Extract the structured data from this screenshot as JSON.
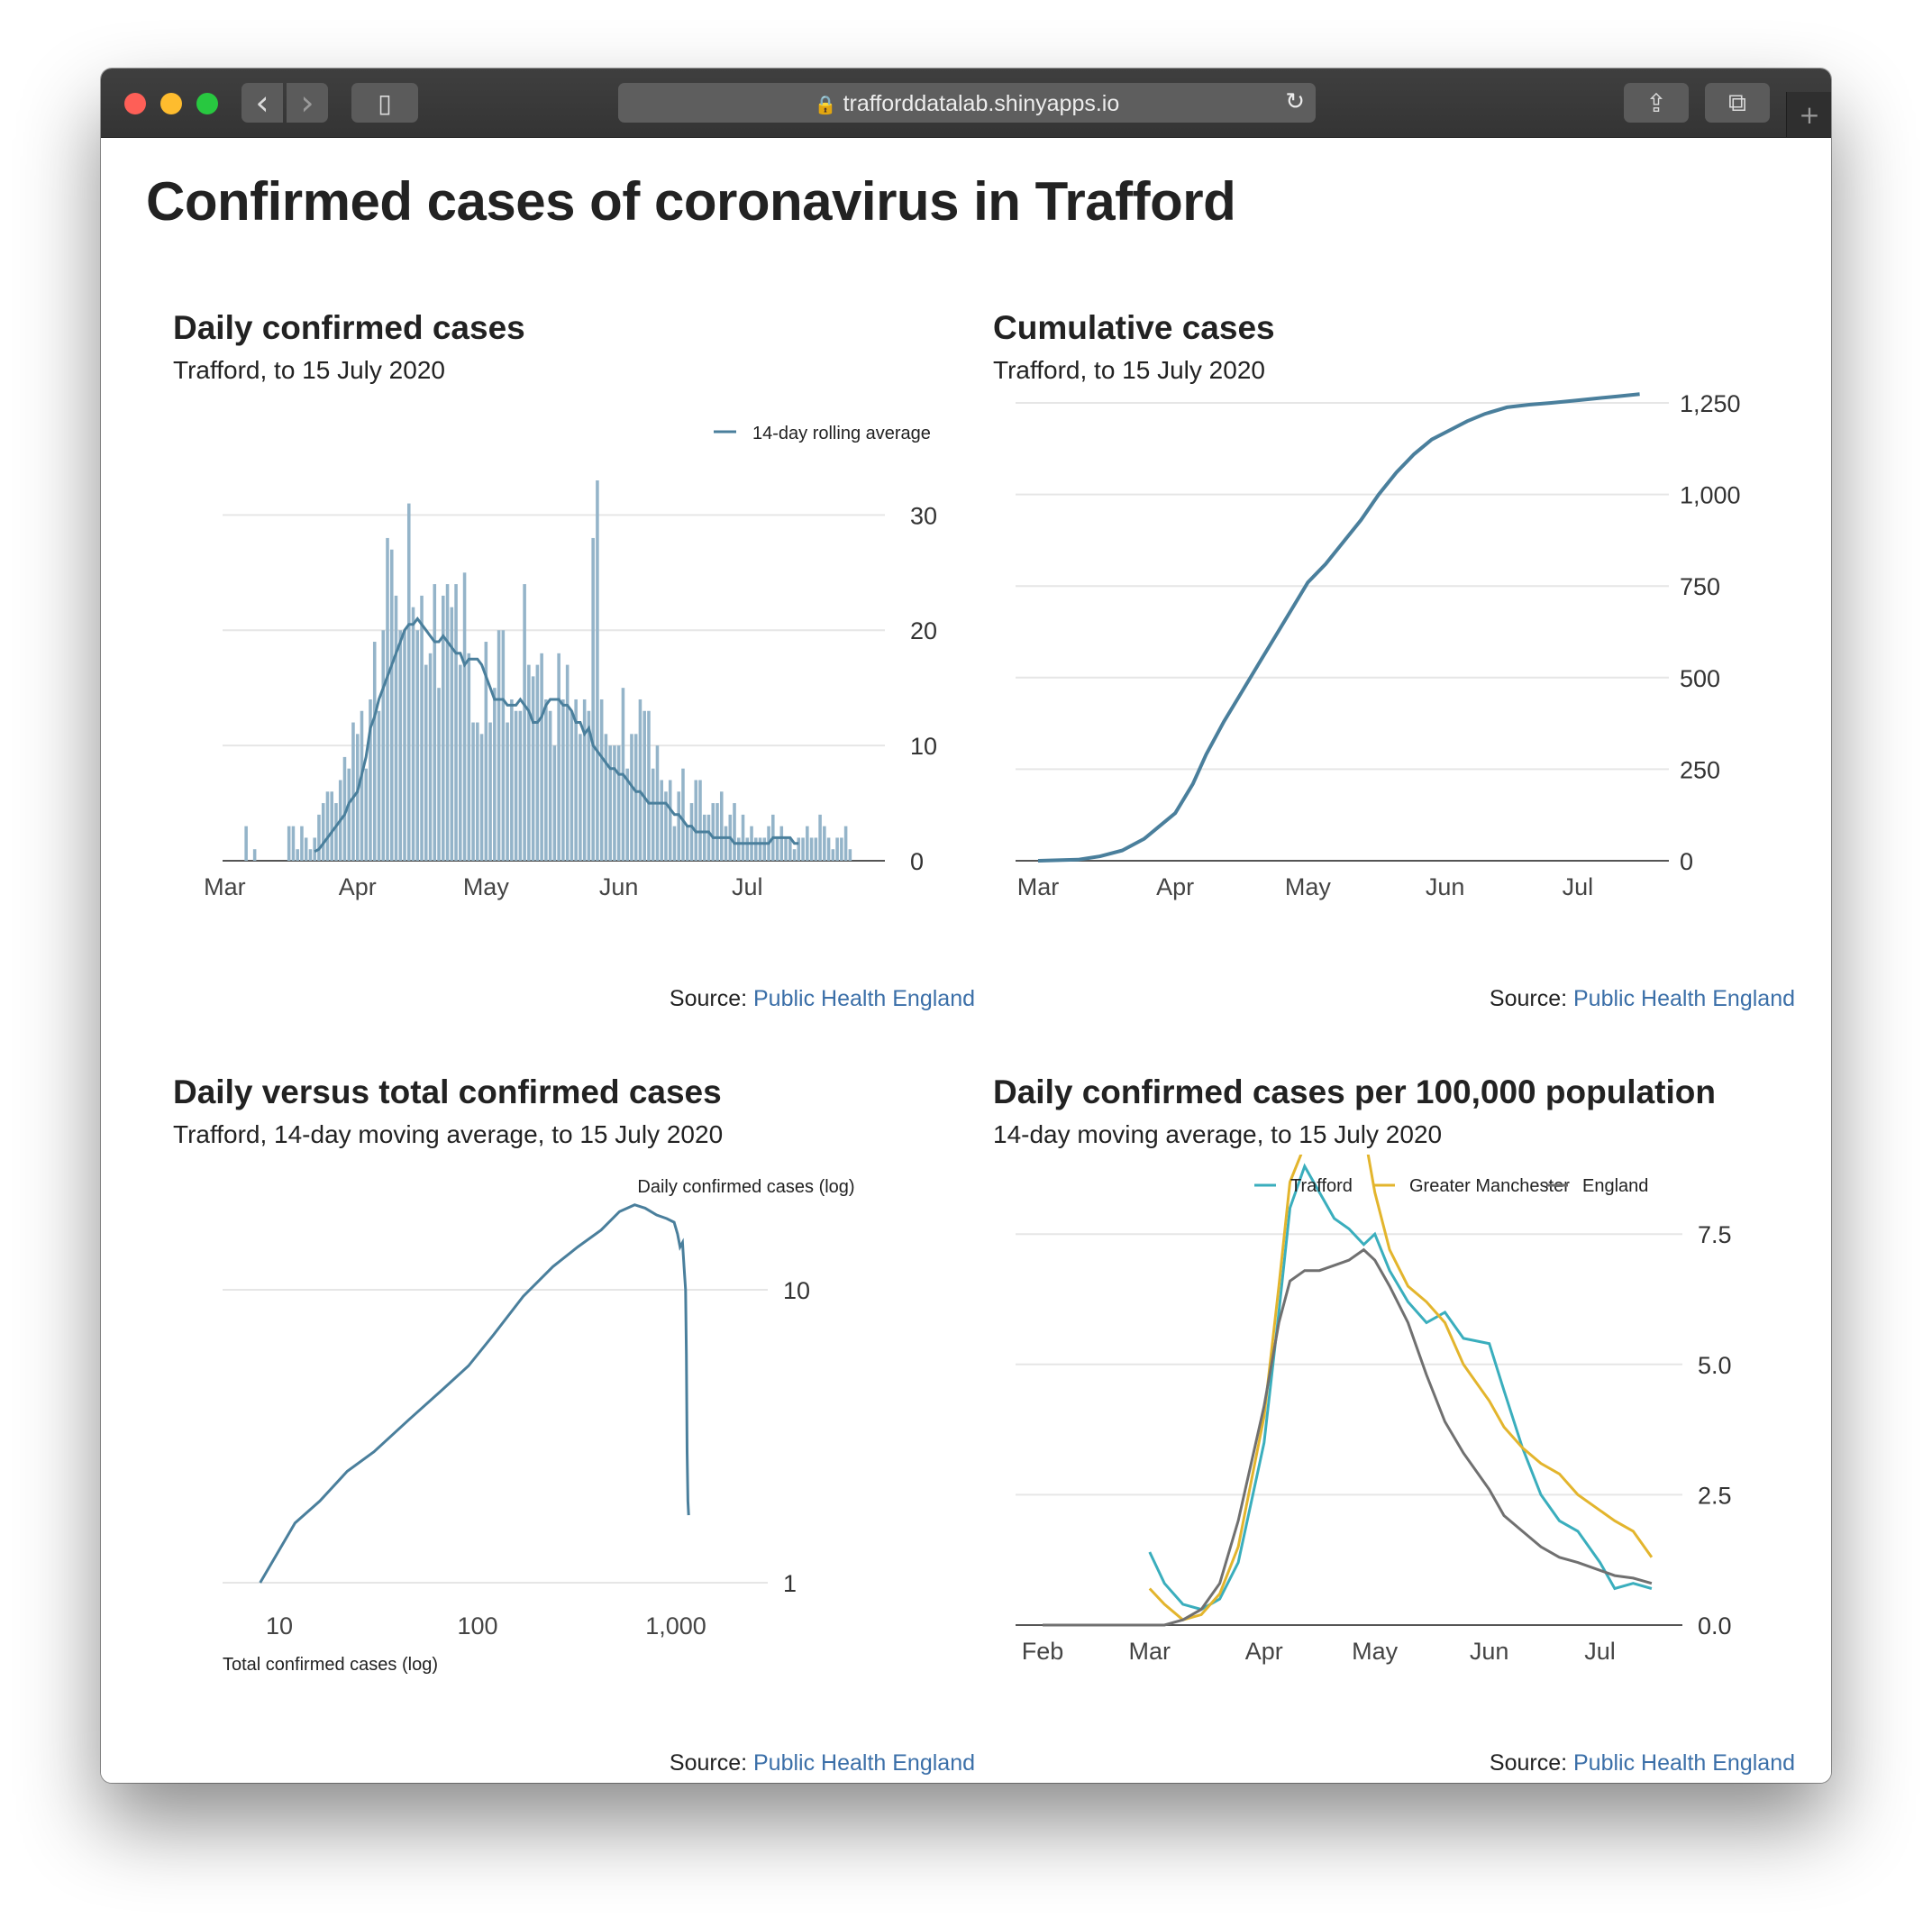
{
  "browser": {
    "url": "trafforddatalab.shinyapps.io",
    "back_glyph": "‹",
    "forward_glyph": "›",
    "sidebar_glyph": "▯",
    "share_glyph": "⇪",
    "tabs_glyph": "⧉",
    "reload_glyph": "↻",
    "new_tab_glyph": "+"
  },
  "page": {
    "title": "Confirmed cases of coronavirus in Trafford"
  },
  "source_prefix": "Source: ",
  "source_link": "Public Health England",
  "colors": {
    "steel": "#4a7f9c",
    "bar": "#94b4c9",
    "teal": "#3aaebd",
    "gold": "#e3b52d",
    "grey": "#707070",
    "link": "#3b6fa8"
  },
  "chart_data": [
    {
      "type": "bar",
      "title": "Daily confirmed cases",
      "subtitle": "Trafford, to 15 July 2020",
      "x_tick_labels": [
        "Mar",
        "Apr",
        "May",
        "Jun",
        "Jul"
      ],
      "y_ticks": [
        0,
        10,
        20,
        30
      ],
      "ylim": [
        0,
        33
      ],
      "legend": [
        "14-day rolling average"
      ],
      "legend_position": "top-right",
      "start_date": "2020-03-01",
      "values": [
        0,
        0,
        0,
        0,
        0,
        3,
        0,
        1,
        0,
        0,
        0,
        0,
        0,
        0,
        0,
        3,
        3,
        1,
        3,
        2,
        1,
        2,
        4,
        5,
        6,
        6,
        5,
        7,
        9,
        8,
        12,
        11,
        13,
        8,
        14,
        19,
        13,
        20,
        28,
        27,
        23,
        20,
        20,
        31,
        22,
        20,
        23,
        17,
        18,
        24,
        15,
        23,
        24,
        22,
        24,
        17,
        25,
        18,
        12,
        12,
        11,
        19,
        12,
        15,
        20,
        20,
        12,
        14,
        13,
        13,
        24,
        17,
        16,
        17,
        18,
        14,
        13,
        10,
        18,
        14,
        17,
        13,
        14,
        11,
        14,
        13,
        28,
        33,
        14,
        11,
        10,
        10,
        10,
        15,
        8,
        11,
        11,
        14,
        13,
        13,
        8,
        10,
        7,
        6,
        7,
        3,
        6,
        8,
        3,
        5,
        7,
        7,
        4,
        4,
        5,
        5,
        6,
        3,
        4,
        5,
        2,
        4,
        2,
        3,
        2,
        2,
        2,
        3,
        4,
        2,
        3,
        2,
        2,
        1,
        2,
        2,
        3,
        2,
        2,
        4,
        3,
        2,
        1,
        2,
        2,
        3,
        1
      ],
      "rolling_average": [
        null,
        null,
        null,
        null,
        null,
        null,
        null,
        null,
        null,
        null,
        null,
        null,
        null,
        null,
        null,
        null,
        null,
        null,
        null,
        null,
        null,
        0.8,
        1,
        1.5,
        2,
        2.5,
        3,
        3.5,
        4,
        5,
        5.5,
        6,
        7.5,
        9,
        11.5,
        12.5,
        14,
        15,
        16,
        17,
        18,
        19,
        20,
        20.5,
        20.5,
        21,
        20.5,
        20,
        19.5,
        19,
        19,
        19.5,
        19,
        18.5,
        18,
        18,
        17,
        17.5,
        17.5,
        17.5,
        17,
        16,
        15,
        14,
        14,
        14,
        13.5,
        13.5,
        13.5,
        14,
        13.5,
        13,
        12,
        12,
        12.5,
        13.5,
        14,
        14,
        14,
        13.5,
        13.5,
        13,
        12,
        12,
        11,
        11.5,
        10,
        9.5,
        9,
        8.5,
        8,
        8,
        7.5,
        7.5,
        7,
        6.5,
        6,
        6,
        5.5,
        5,
        5,
        5,
        5,
        5,
        4.5,
        4,
        4,
        3.5,
        3,
        3,
        2.5,
        2.5,
        2.5,
        2.5,
        2,
        2,
        2,
        2,
        2,
        1.5,
        1.5,
        1.5,
        1.5,
        1.5,
        1.5,
        1.5,
        1.5,
        1.5,
        2,
        2,
        2,
        2,
        2,
        1.5,
        1.5,
        null,
        null,
        null,
        null,
        null,
        null,
        null,
        null,
        null,
        null,
        null,
        null,
        null
      ]
    },
    {
      "type": "line",
      "title": "Cumulative cases",
      "subtitle": "Trafford, to 15 July 2020",
      "x_tick_labels": [
        "Mar",
        "Apr",
        "May",
        "Jun",
        "Jul"
      ],
      "y_tick_labels": [
        "0",
        "250",
        "500",
        "750",
        "1,000",
        "1,250"
      ],
      "ylim": [
        0,
        1250
      ],
      "x": [
        "2020-03-01",
        "2020-03-10",
        "2020-03-15",
        "2020-03-20",
        "2020-03-25",
        "2020-03-28",
        "2020-04-01",
        "2020-04-05",
        "2020-04-08",
        "2020-04-12",
        "2020-04-16",
        "2020-04-20",
        "2020-04-24",
        "2020-04-28",
        "2020-05-01",
        "2020-05-05",
        "2020-05-09",
        "2020-05-13",
        "2020-05-17",
        "2020-05-21",
        "2020-05-25",
        "2020-05-29",
        "2020-06-02",
        "2020-06-06",
        "2020-06-10",
        "2020-06-15",
        "2020-06-20",
        "2020-06-25",
        "2020-06-30",
        "2020-07-05",
        "2020-07-10",
        "2020-07-15"
      ],
      "values": [
        0,
        3,
        12,
        28,
        60,
        90,
        130,
        210,
        290,
        380,
        460,
        540,
        620,
        700,
        760,
        810,
        870,
        930,
        1000,
        1060,
        1110,
        1150,
        1175,
        1200,
        1220,
        1238,
        1245,
        1250,
        1256,
        1262,
        1268,
        1274
      ]
    },
    {
      "type": "line",
      "title": "Daily versus total confirmed cases",
      "subtitle": "Trafford, 14-day moving average, to 15 July 2020",
      "xlabel": "Total confirmed cases (log)",
      "ylabel": "Daily confirmed cases (log)",
      "x_tick_labels": [
        "10",
        "100",
        "1,000"
      ],
      "y_tick_labels": [
        "1",
        "10"
      ],
      "log_x": true,
      "log_y": true,
      "x": [
        8,
        12,
        16,
        22,
        30,
        45,
        65,
        90,
        120,
        170,
        240,
        320,
        420,
        520,
        620,
        700,
        800,
        900,
        980,
        1020,
        1050,
        1080,
        1100,
        1120,
        1130,
        1140,
        1150,
        1160
      ],
      "values": [
        1,
        1.6,
        1.9,
        2.4,
        2.8,
        3.6,
        4.5,
        5.5,
        7,
        9.5,
        12,
        14,
        16,
        18.5,
        19.5,
        19,
        18,
        17.5,
        17,
        15.5,
        14,
        14.5,
        12,
        10,
        6,
        2.8,
        1.9,
        1.7
      ]
    },
    {
      "type": "line",
      "title": "Daily confirmed cases per 100,000 population",
      "subtitle": "14-day moving average, to 15 July 2020",
      "x_tick_labels": [
        "Feb",
        "Mar",
        "Apr",
        "May",
        "Jun",
        "Jul"
      ],
      "y_tick_labels": [
        "0.0",
        "2.5",
        "5.0",
        "7.5"
      ],
      "ylim": [
        0,
        10
      ],
      "legend_position": "top",
      "x": [
        "2020-02-01",
        "2020-02-15",
        "2020-02-25",
        "2020-03-01",
        "2020-03-05",
        "2020-03-10",
        "2020-03-15",
        "2020-03-20",
        "2020-03-25",
        "2020-04-01",
        "2020-04-05",
        "2020-04-08",
        "2020-04-12",
        "2020-04-16",
        "2020-04-20",
        "2020-04-24",
        "2020-04-28",
        "2020-05-01",
        "2020-05-05",
        "2020-05-10",
        "2020-05-15",
        "2020-05-20",
        "2020-05-25",
        "2020-06-01",
        "2020-06-05",
        "2020-06-10",
        "2020-06-15",
        "2020-06-20",
        "2020-06-25",
        "2020-07-01",
        "2020-07-05",
        "2020-07-10",
        "2020-07-15"
      ],
      "series": [
        {
          "name": "Trafford",
          "color": "#3aaebd",
          "values": [
            null,
            null,
            null,
            1.4,
            0.8,
            0.4,
            0.3,
            0.5,
            1.2,
            3.5,
            6,
            8,
            8.8,
            8.3,
            7.8,
            7.6,
            7.3,
            7.5,
            6.8,
            6.2,
            5.8,
            6,
            5.5,
            5.4,
            4.5,
            3.4,
            2.5,
            2,
            1.8,
            1.2,
            0.7,
            0.8,
            0.7
          ]
        },
        {
          "name": "Greater Manchester",
          "color": "#e3b52d",
          "values": [
            null,
            null,
            null,
            0.7,
            0.4,
            0.1,
            0.2,
            0.6,
            1.5,
            4,
            6.5,
            8.5,
            9.2,
            9.9,
            9.8,
            9.7,
            9.5,
            8.3,
            7.2,
            6.5,
            6.2,
            5.8,
            5,
            4.3,
            3.8,
            3.4,
            3.1,
            2.9,
            2.5,
            2.2,
            2,
            1.8,
            1.3
          ]
        },
        {
          "name": "England",
          "color": "#707070",
          "values": [
            0,
            0,
            0,
            0,
            0,
            0.1,
            0.3,
            0.8,
            2,
            4.2,
            5.8,
            6.6,
            6.8,
            6.8,
            6.9,
            7,
            7.2,
            7,
            6.5,
            5.8,
            4.8,
            3.9,
            3.3,
            2.6,
            2.1,
            1.8,
            1.5,
            1.3,
            1.2,
            1.05,
            0.95,
            0.9,
            0.8
          ]
        }
      ]
    }
  ]
}
